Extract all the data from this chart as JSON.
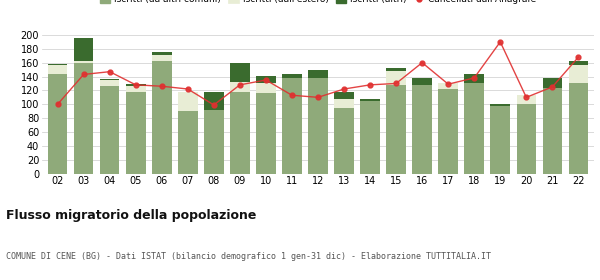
{
  "years": [
    "02",
    "03",
    "04",
    "05",
    "06",
    "07",
    "08",
    "09",
    "10",
    "11",
    "12",
    "13",
    "14",
    "15",
    "16",
    "17",
    "18",
    "19",
    "20",
    "21",
    "22"
  ],
  "iscritti_comuni": [
    143,
    160,
    127,
    117,
    163,
    91,
    92,
    117,
    116,
    138,
    138,
    95,
    105,
    128,
    128,
    122,
    130,
    98,
    100,
    123,
    130
  ],
  "iscritti_estero": [
    13,
    3,
    8,
    10,
    8,
    27,
    0,
    15,
    15,
    0,
    0,
    13,
    0,
    20,
    0,
    8,
    0,
    0,
    13,
    0,
    27
  ],
  "iscritti_altri": [
    2,
    33,
    2,
    2,
    4,
    0,
    26,
    27,
    10,
    5,
    12,
    10,
    2,
    4,
    10,
    0,
    14,
    3,
    0,
    15,
    5
  ],
  "cancellati": [
    100,
    143,
    147,
    128,
    126,
    122,
    99,
    128,
    135,
    113,
    110,
    122,
    128,
    130,
    160,
    129,
    138,
    190,
    110,
    125,
    168
  ],
  "color_comuni": "#8faa7a",
  "color_estero": "#e8edd5",
  "color_altri": "#3a6b2e",
  "color_cancellati": "#e03030",
  "ylim": [
    0,
    210
  ],
  "yticks": [
    0,
    20,
    40,
    60,
    80,
    100,
    120,
    140,
    160,
    180,
    200
  ],
  "title": "Flusso migratorio della popolazione",
  "subtitle": "COMUNE DI CENE (BG) - Dati ISTAT (bilancio demografico 1 gen-31 dic) - Elaborazione TUTTITALIA.IT",
  "background_color": "#ffffff",
  "grid_color": "#cccccc"
}
